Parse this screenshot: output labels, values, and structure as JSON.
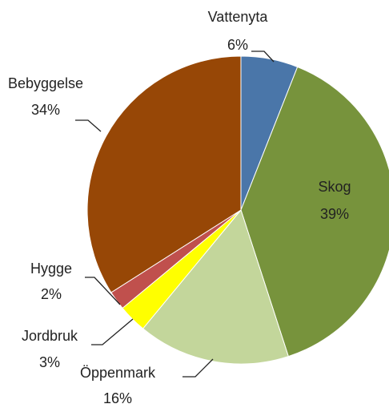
{
  "chart_data": {
    "type": "pie",
    "categories": [
      "Vattenyta",
      "Skog",
      "Öppenmark",
      "Jordbruk",
      "Hygge",
      "Bebyggelse"
    ],
    "values": [
      6,
      39,
      16,
      3,
      2,
      34
    ],
    "value_labels": [
      "6%",
      "39%",
      "16%",
      "3%",
      "2%",
      "34%"
    ],
    "colors": [
      "#4a76a9",
      "#77933c",
      "#c3d69b",
      "#ffff00",
      "#c0504d",
      "#974706"
    ]
  }
}
